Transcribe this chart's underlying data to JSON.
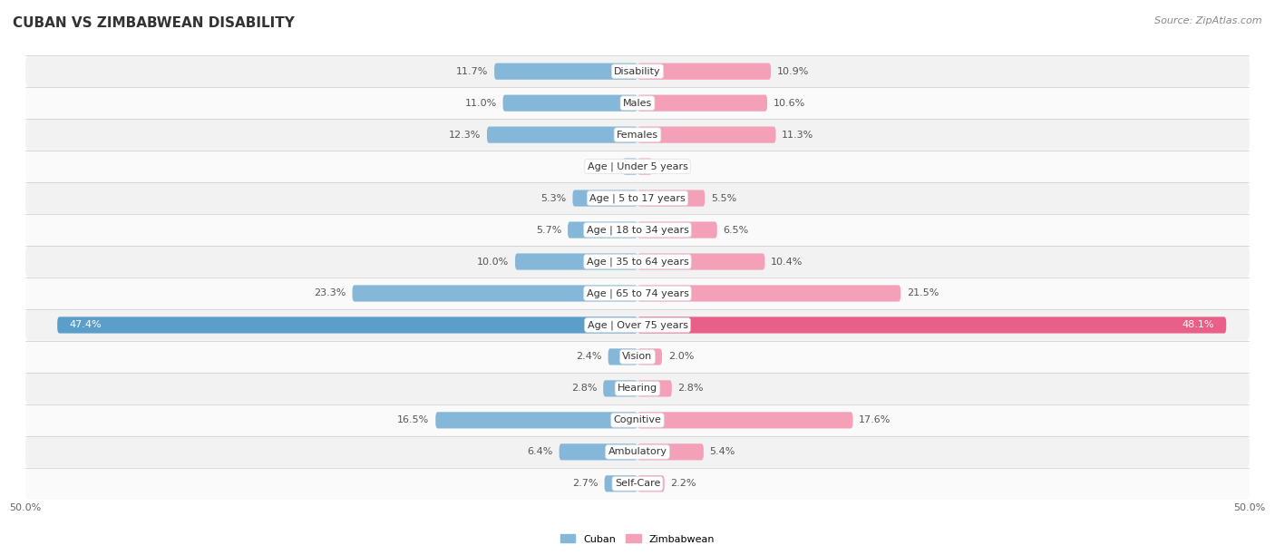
{
  "title": "CUBAN VS ZIMBABWEAN DISABILITY",
  "source": "Source: ZipAtlas.com",
  "categories": [
    "Disability",
    "Males",
    "Females",
    "Age | Under 5 years",
    "Age | 5 to 17 years",
    "Age | 18 to 34 years",
    "Age | 35 to 64 years",
    "Age | 65 to 74 years",
    "Age | Over 75 years",
    "Vision",
    "Hearing",
    "Cognitive",
    "Ambulatory",
    "Self-Care"
  ],
  "cuban": [
    11.7,
    11.0,
    12.3,
    1.2,
    5.3,
    5.7,
    10.0,
    23.3,
    47.4,
    2.4,
    2.8,
    16.5,
    6.4,
    2.7
  ],
  "zimbabwean": [
    10.9,
    10.6,
    11.3,
    1.2,
    5.5,
    6.5,
    10.4,
    21.5,
    48.1,
    2.0,
    2.8,
    17.6,
    5.4,
    2.2
  ],
  "max_val": 50.0,
  "cuban_color": "#85b8d8",
  "cuban_color_full": "#5a9ec9",
  "zimbabwean_color": "#f4a0b8",
  "zimbabwean_color_full": "#e8608a",
  "cuban_label": "Cuban",
  "zimbabwean_label": "Zimbabwean",
  "bar_height": 0.52,
  "fig_bg": "#ffffff",
  "row_color_odd": "#f2f2f2",
  "row_color_even": "#fafafa",
  "title_fontsize": 11,
  "label_fontsize": 8,
  "val_fontsize": 8,
  "tick_fontsize": 8,
  "source_fontsize": 8
}
